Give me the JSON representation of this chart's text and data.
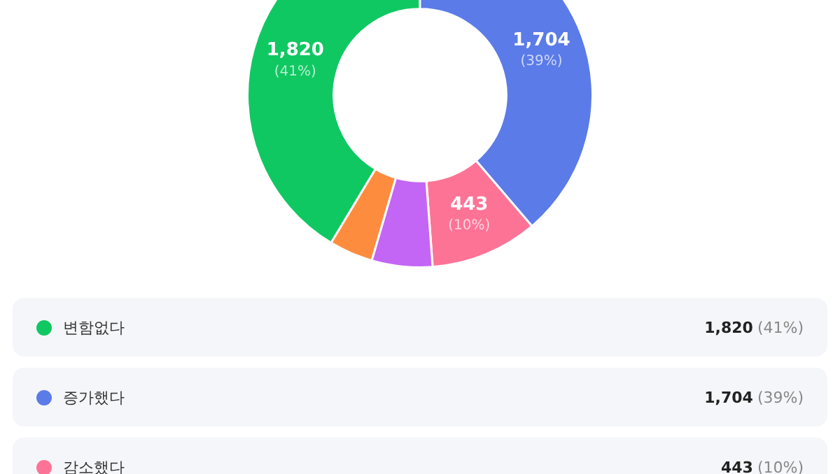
{
  "chart_data": {
    "type": "donut",
    "categories": [
      "변함없다",
      "증가했다",
      "감소했다",
      null,
      null
    ],
    "values": [
      1820,
      1704,
      443,
      250,
      180
    ],
    "colors": [
      "#10c862",
      "#5b7be8",
      "#fd7396",
      "#c466f5",
      "#fd8c3f"
    ],
    "value_labels": [
      "1,820 (41%)",
      "1,704 (39%)",
      "443 (10%)",
      null,
      null
    ],
    "legend": "bottom"
  }
}
